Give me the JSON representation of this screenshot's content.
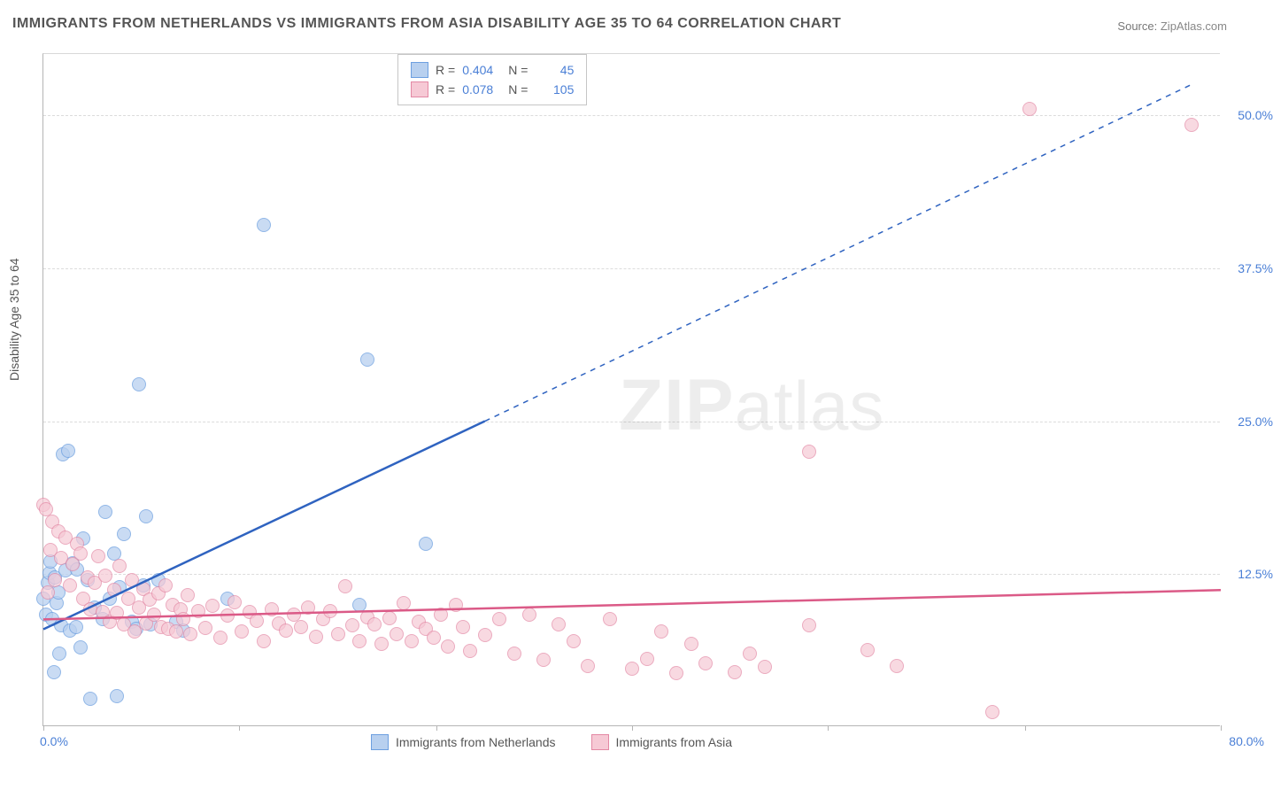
{
  "title": "IMMIGRANTS FROM NETHERLANDS VS IMMIGRANTS FROM ASIA DISABILITY AGE 35 TO 64 CORRELATION CHART",
  "source_label": "Source:",
  "source_value": "ZipAtlas.com",
  "y_axis_label": "Disability Age 35 to 64",
  "watermark_a": "ZIP",
  "watermark_b": "atlas",
  "chart": {
    "type": "scatter",
    "xlim": [
      0,
      80
    ],
    "ylim": [
      0,
      55
    ],
    "x_tick_min_label": "0.0%",
    "x_tick_max_label": "80.0%",
    "x_tick_positions": [
      0,
      13.3,
      26.7,
      40,
      53.3,
      66.7,
      80
    ],
    "y_gridlines": [
      12.5,
      25.0,
      37.5,
      50.0
    ],
    "y_tick_labels": [
      "12.5%",
      "25.0%",
      "37.5%",
      "50.0%"
    ],
    "background_color": "#ffffff",
    "grid_color": "#dcdcdc",
    "grid_dash": "4,4",
    "axis_color": "#b5b5b5",
    "tick_label_color": "#4a7fd6",
    "tick_label_fontsize": 14,
    "title_fontsize": 16,
    "title_color": "#555555",
    "marker_radius": 8,
    "marker_stroke_width": 1,
    "series": [
      {
        "name": "Immigrants from Netherlands",
        "marker_fill": "#b8d0ef",
        "marker_stroke": "#6d9fe0",
        "marker_opacity": 0.75,
        "line_color": "#2f63c0",
        "line_width": 2.5,
        "trend_solid": {
          "x1": 0,
          "y1": 8,
          "x2": 30,
          "y2": 25
        },
        "trend_dash": {
          "x1": 30,
          "y1": 25,
          "x2": 78,
          "y2": 52.5
        },
        "legend_R": "0.404",
        "legend_N": "45",
        "points": [
          [
            0.0,
            10.5
          ],
          [
            0.2,
            9.2
          ],
          [
            0.3,
            11.8
          ],
          [
            0.4,
            12.6
          ],
          [
            0.5,
            13.5
          ],
          [
            0.6,
            8.8
          ],
          [
            0.7,
            4.5
          ],
          [
            0.8,
            12.2
          ],
          [
            0.9,
            10.1
          ],
          [
            1.0,
            11.0
          ],
          [
            1.1,
            6.0
          ],
          [
            1.2,
            8.3
          ],
          [
            1.3,
            22.3
          ],
          [
            1.7,
            22.6
          ],
          [
            1.5,
            12.8
          ],
          [
            1.8,
            7.9
          ],
          [
            2.0,
            13.4
          ],
          [
            2.2,
            8.2
          ],
          [
            2.3,
            12.9
          ],
          [
            2.5,
            6.5
          ],
          [
            2.7,
            15.4
          ],
          [
            3.0,
            12.0
          ],
          [
            3.2,
            2.3
          ],
          [
            3.5,
            9.8
          ],
          [
            4.0,
            8.8
          ],
          [
            4.2,
            17.6
          ],
          [
            4.5,
            10.5
          ],
          [
            4.8,
            14.2
          ],
          [
            5.0,
            2.5
          ],
          [
            5.2,
            11.4
          ],
          [
            5.5,
            15.8
          ],
          [
            6.0,
            8.6
          ],
          [
            6.3,
            8.0
          ],
          [
            6.5,
            28.0
          ],
          [
            6.8,
            11.6
          ],
          [
            7.0,
            17.2
          ],
          [
            7.3,
            8.4
          ],
          [
            7.8,
            12.0
          ],
          [
            9.0,
            8.6
          ],
          [
            9.5,
            7.9
          ],
          [
            12.5,
            10.5
          ],
          [
            15.0,
            41.0
          ],
          [
            22.0,
            30.0
          ],
          [
            26.0,
            15.0
          ],
          [
            21.5,
            10.0
          ]
        ]
      },
      {
        "name": "Immigrants from Asia",
        "marker_fill": "#f6c9d5",
        "marker_stroke": "#e388a4",
        "marker_opacity": 0.7,
        "line_color": "#db5a87",
        "line_width": 2.5,
        "trend_solid": {
          "x1": 0,
          "y1": 8.8,
          "x2": 80,
          "y2": 11.2
        },
        "trend_dash": null,
        "legend_R": "0.078",
        "legend_N": "105",
        "points": [
          [
            0.0,
            18.2
          ],
          [
            0.2,
            17.8
          ],
          [
            0.3,
            11.0
          ],
          [
            0.5,
            14.5
          ],
          [
            0.6,
            16.8
          ],
          [
            0.8,
            12.0
          ],
          [
            1.0,
            16.0
          ],
          [
            1.2,
            13.8
          ],
          [
            1.5,
            15.5
          ],
          [
            1.8,
            11.6
          ],
          [
            2.0,
            13.3
          ],
          [
            2.3,
            15.0
          ],
          [
            2.5,
            14.2
          ],
          [
            2.7,
            10.5
          ],
          [
            3.0,
            12.2
          ],
          [
            3.2,
            9.6
          ],
          [
            3.5,
            11.8
          ],
          [
            3.7,
            14.0
          ],
          [
            4.0,
            9.4
          ],
          [
            4.2,
            12.4
          ],
          [
            4.5,
            8.6
          ],
          [
            4.8,
            11.2
          ],
          [
            5.0,
            9.3
          ],
          [
            5.2,
            13.2
          ],
          [
            5.5,
            8.4
          ],
          [
            5.8,
            10.5
          ],
          [
            6.0,
            12.0
          ],
          [
            6.2,
            7.8
          ],
          [
            6.5,
            9.8
          ],
          [
            6.8,
            11.3
          ],
          [
            7.0,
            8.5
          ],
          [
            7.2,
            10.4
          ],
          [
            7.5,
            9.2
          ],
          [
            7.8,
            10.9
          ],
          [
            8.0,
            8.2
          ],
          [
            8.3,
            11.6
          ],
          [
            8.5,
            8.0
          ],
          [
            8.8,
            10.0
          ],
          [
            9.0,
            7.8
          ],
          [
            9.3,
            9.6
          ],
          [
            9.5,
            8.8
          ],
          [
            9.8,
            10.8
          ],
          [
            10.0,
            7.6
          ],
          [
            10.5,
            9.5
          ],
          [
            11.0,
            8.1
          ],
          [
            11.5,
            9.9
          ],
          [
            12.0,
            7.3
          ],
          [
            12.5,
            9.1
          ],
          [
            13.0,
            10.2
          ],
          [
            13.5,
            7.8
          ],
          [
            14.0,
            9.4
          ],
          [
            14.5,
            8.7
          ],
          [
            15.0,
            7.0
          ],
          [
            15.5,
            9.6
          ],
          [
            16.0,
            8.5
          ],
          [
            16.5,
            7.9
          ],
          [
            17.0,
            9.2
          ],
          [
            17.5,
            8.2
          ],
          [
            18.0,
            9.8
          ],
          [
            18.5,
            7.4
          ],
          [
            19.0,
            8.8
          ],
          [
            19.5,
            9.5
          ],
          [
            20.0,
            7.6
          ],
          [
            20.5,
            11.5
          ],
          [
            21.0,
            8.3
          ],
          [
            21.5,
            7.0
          ],
          [
            22.0,
            9.0
          ],
          [
            22.5,
            8.4
          ],
          [
            23.0,
            6.8
          ],
          [
            23.5,
            8.9
          ],
          [
            24.0,
            7.6
          ],
          [
            24.5,
            10.1
          ],
          [
            25.0,
            7.0
          ],
          [
            25.5,
            8.6
          ],
          [
            26.0,
            8.0
          ],
          [
            26.5,
            7.3
          ],
          [
            27.0,
            9.2
          ],
          [
            27.5,
            6.6
          ],
          [
            28.0,
            10.0
          ],
          [
            28.5,
            8.2
          ],
          [
            29.0,
            6.2
          ],
          [
            30.0,
            7.5
          ],
          [
            31.0,
            8.8
          ],
          [
            32.0,
            6.0
          ],
          [
            33.0,
            9.2
          ],
          [
            34.0,
            5.5
          ],
          [
            35.0,
            8.4
          ],
          [
            36.0,
            7.0
          ],
          [
            37.0,
            5.0
          ],
          [
            38.5,
            8.8
          ],
          [
            40.0,
            4.8
          ],
          [
            41.0,
            5.6
          ],
          [
            42.0,
            7.8
          ],
          [
            43.0,
            4.4
          ],
          [
            44.0,
            6.8
          ],
          [
            45.0,
            5.2
          ],
          [
            47.0,
            4.5
          ],
          [
            48.0,
            6.0
          ],
          [
            49.0,
            4.9
          ],
          [
            52.0,
            8.3
          ],
          [
            52.0,
            22.5
          ],
          [
            56.0,
            6.3
          ],
          [
            58.0,
            5.0
          ],
          [
            64.5,
            1.2
          ],
          [
            67.0,
            50.5
          ],
          [
            78.0,
            49.2
          ]
        ]
      }
    ]
  },
  "legend_top_labels": {
    "R": "R =",
    "N": "N ="
  },
  "legend_bottom": [
    {
      "label": "Immigrants from Netherlands",
      "fill": "#b8d0ef",
      "stroke": "#6d9fe0"
    },
    {
      "label": "Immigrants from Asia",
      "fill": "#f6c9d5",
      "stroke": "#e388a4"
    }
  ]
}
